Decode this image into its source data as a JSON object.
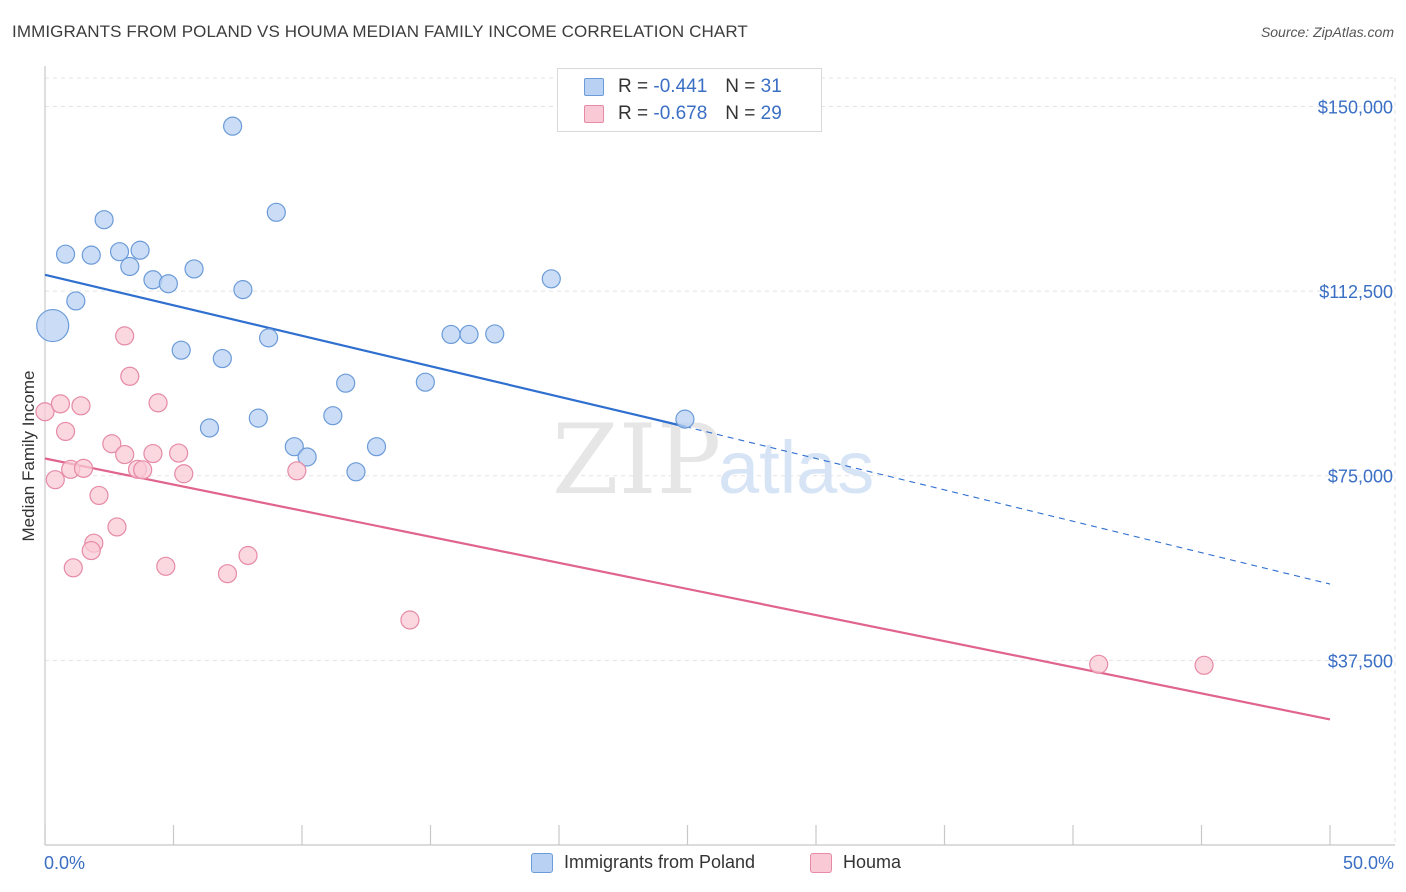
{
  "header": {
    "title": "IMMIGRANTS FROM POLAND VS HOUMA MEDIAN FAMILY INCOME CORRELATION CHART",
    "source": "Source: ZipAtlas.com"
  },
  "watermark": {
    "zip": "ZIP",
    "atlas": "atlas"
  },
  "legend_top": {
    "rows": [
      {
        "r_label": "R =",
        "r_value": "-0.441",
        "n_label": "N =",
        "n_value": "31",
        "color": "#b9d2f3",
        "border": "#6b9bd8"
      },
      {
        "r_label": "R =",
        "r_value": "-0.678",
        "n_label": "N =",
        "n_value": "29",
        "color": "#f9c9d6",
        "border": "#e68aa6"
      }
    ]
  },
  "chart_data": {
    "type": "scatter",
    "title": "IMMIGRANTS FROM POLAND VS HOUMA MEDIAN FAMILY INCOME CORRELATION CHART",
    "xlabel": "",
    "ylabel": "Median Family Income",
    "xlim": [
      0,
      50
    ],
    "ylim": [
      0,
      157000
    ],
    "x_tick_labels": [
      "0.0%",
      "50.0%"
    ],
    "y_ticks": [
      37500,
      75000,
      112500,
      150000
    ],
    "y_tick_labels": [
      "$37,500",
      "$75,000",
      "$112,500",
      "$150,000"
    ],
    "grid": true,
    "legend_position": "bottom-center",
    "series": [
      {
        "name": "Immigrants from Poland",
        "color": "#b9d2f3",
        "stroke": "#6b9bd8",
        "line_color": "#2f6fcf",
        "points": [
          [
            0.3,
            105500,
            16
          ],
          [
            7.3,
            146000,
            9
          ],
          [
            2.3,
            127000,
            9
          ],
          [
            9.0,
            128500,
            9
          ],
          [
            0.8,
            120000,
            9
          ],
          [
            1.8,
            119800,
            9
          ],
          [
            2.9,
            120500,
            9
          ],
          [
            3.7,
            120800,
            9
          ],
          [
            3.3,
            117500,
            9
          ],
          [
            5.8,
            117000,
            9
          ],
          [
            4.2,
            114800,
            9
          ],
          [
            4.8,
            114000,
            9
          ],
          [
            7.7,
            112800,
            9
          ],
          [
            1.2,
            110500,
            9
          ],
          [
            8.7,
            103000,
            9
          ],
          [
            15.8,
            103700,
            9
          ],
          [
            16.5,
            103700,
            9
          ],
          [
            17.5,
            103800,
            9
          ],
          [
            19.7,
            115000,
            9
          ],
          [
            5.3,
            100500,
            9
          ],
          [
            6.9,
            98800,
            9
          ],
          [
            11.7,
            93800,
            9
          ],
          [
            14.8,
            94000,
            9
          ],
          [
            6.4,
            84700,
            9
          ],
          [
            8.3,
            86700,
            9
          ],
          [
            11.2,
            87200,
            9
          ],
          [
            9.7,
            80900,
            9
          ],
          [
            10.2,
            78800,
            9
          ],
          [
            12.9,
            80900,
            9
          ],
          [
            12.1,
            75800,
            9
          ],
          [
            24.9,
            86500,
            9
          ]
        ],
        "trend": {
          "x1": 0,
          "y1": 115800,
          "x2": 24.9,
          "y2": 85000,
          "dashed_to_x": 50,
          "dashed_to_y": 53000
        }
      },
      {
        "name": "Houma",
        "color": "#f9c9d6",
        "stroke": "#e68aa6",
        "line_color": "#e0648c",
        "points": [
          [
            0.0,
            88000,
            9
          ],
          [
            0.6,
            89600,
            9
          ],
          [
            1.4,
            89200,
            9
          ],
          [
            0.8,
            84000,
            9
          ],
          [
            3.1,
            103400,
            9
          ],
          [
            3.3,
            95200,
            9
          ],
          [
            4.4,
            89800,
            9
          ],
          [
            2.6,
            81500,
            9
          ],
          [
            3.1,
            79300,
            9
          ],
          [
            4.2,
            79500,
            9
          ],
          [
            5.2,
            79600,
            9
          ],
          [
            1.0,
            76300,
            9
          ],
          [
            1.5,
            76500,
            9
          ],
          [
            3.6,
            76300,
            9
          ],
          [
            3.8,
            76200,
            9
          ],
          [
            5.4,
            75400,
            9
          ],
          [
            0.4,
            74200,
            9
          ],
          [
            2.1,
            71000,
            9
          ],
          [
            2.8,
            64600,
            9
          ],
          [
            1.9,
            61300,
            9
          ],
          [
            1.8,
            59800,
            9
          ],
          [
            1.1,
            56300,
            9
          ],
          [
            4.7,
            56600,
            9
          ],
          [
            7.9,
            58800,
            9
          ],
          [
            7.1,
            55100,
            9
          ],
          [
            9.8,
            76000,
            9
          ],
          [
            14.2,
            45700,
            9
          ],
          [
            41.0,
            36700,
            9
          ],
          [
            45.1,
            36500,
            9
          ]
        ],
        "trend": {
          "x1": 0,
          "y1": 78500,
          "x2": 50,
          "y2": 25500
        }
      }
    ]
  }
}
